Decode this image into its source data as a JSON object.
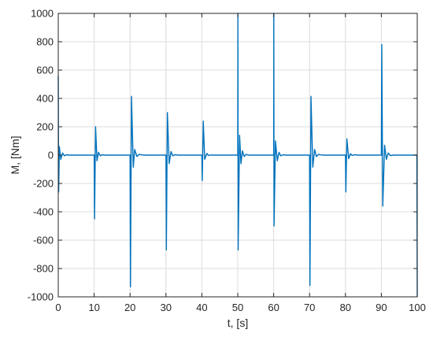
{
  "chart_data": {
    "type": "line",
    "title": "",
    "xlabel": "t, [s]",
    "ylabel": "M, [Nm]",
    "xlim": [
      0,
      100
    ],
    "ylim": [
      -1000,
      1000
    ],
    "x_ticks": [
      0,
      10,
      20,
      30,
      40,
      50,
      60,
      70,
      80,
      90,
      100
    ],
    "y_ticks": [
      -1000,
      -800,
      -600,
      -400,
      -200,
      0,
      200,
      400,
      600,
      800,
      1000
    ],
    "x_tick_labels": [
      "0",
      "10",
      "20",
      "30",
      "40",
      "50",
      "60",
      "70",
      "80",
      "90",
      "100"
    ],
    "y_tick_labels": [
      "-1000",
      "-800",
      "-600",
      "-400",
      "-200",
      "0",
      "200",
      "400",
      "600",
      "800",
      "1000"
    ],
    "grid": true,
    "legend": "none",
    "line_color": "#0072BD",
    "series": [
      {
        "x": [
          0,
          0.1,
          0.3,
          0.7,
          1.2,
          1.7,
          2.3,
          3,
          4,
          10,
          10.1,
          10.4,
          10.8,
          11.2,
          11.7,
          12.2,
          13,
          14,
          20,
          20.1,
          20.4,
          20.9,
          21.3,
          21.9,
          22.5,
          23.2,
          24,
          30,
          30.1,
          30.4,
          30.9,
          31.4,
          31.9,
          32.5,
          33.5,
          40,
          40.1,
          40.4,
          40.8,
          41.4,
          41.9,
          42.5,
          43.5,
          50,
          50.05,
          50.1,
          50.5,
          50.9,
          51.3,
          51.8,
          52.3,
          53,
          54,
          60,
          60.05,
          60.1,
          60.5,
          61,
          61.5,
          62,
          62.6,
          63.5,
          70,
          70.1,
          70.4,
          70.9,
          71.4,
          71.9,
          72.5,
          73.5,
          80,
          80.1,
          80.4,
          80.9,
          81.4,
          81.9,
          82.5,
          83.5,
          90,
          90.1,
          90.4,
          90.9,
          91.4,
          91.9,
          92.5,
          93.5,
          99.9,
          100
        ],
        "y": [
          560,
          -260,
          60,
          -30,
          15,
          -5,
          3,
          0,
          0,
          0,
          -450,
          200,
          -40,
          20,
          -5,
          3,
          0,
          0,
          0,
          -930,
          415,
          -85,
          40,
          -10,
          5,
          2,
          0,
          0,
          -670,
          300,
          -60,
          25,
          -5,
          3,
          0,
          0,
          -180,
          240,
          -30,
          12,
          -3,
          1,
          0,
          0,
          1000,
          -670,
          140,
          -60,
          30,
          -10,
          5,
          0,
          0,
          0,
          1000,
          -500,
          100,
          -40,
          20,
          -5,
          2,
          0,
          0,
          -920,
          415,
          -85,
          40,
          -10,
          5,
          0,
          0,
          -260,
          115,
          -25,
          10,
          -3,
          2,
          0,
          0,
          780,
          -360,
          70,
          -30,
          15,
          -3,
          0,
          0,
          -1000
        ]
      }
    ]
  }
}
